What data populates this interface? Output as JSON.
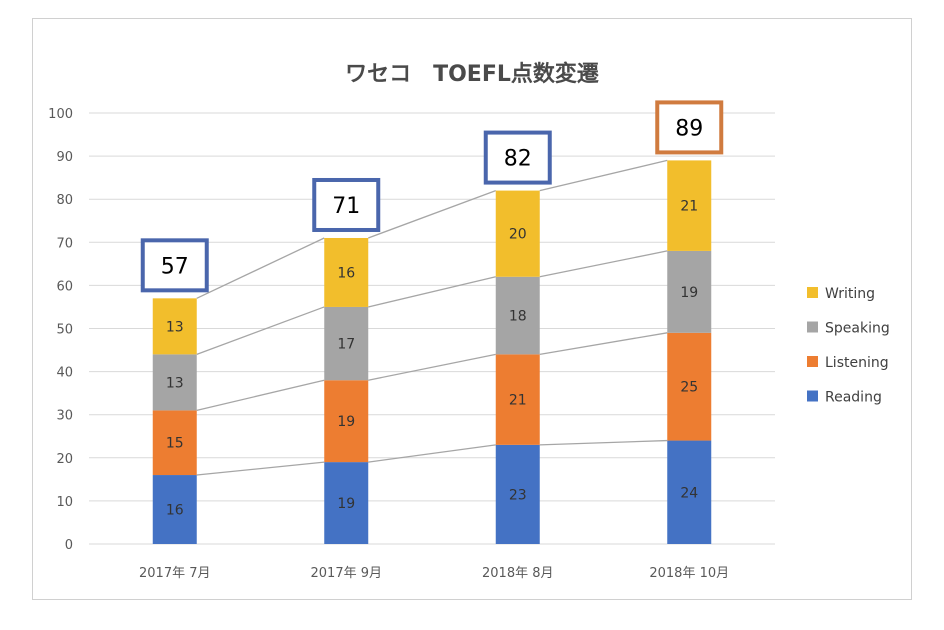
{
  "chart_data": {
    "type": "bar",
    "stacked": true,
    "title": "ワセコ　TOEFL点数変遷",
    "categories": [
      "2017年 7月",
      "2017年 9月",
      "2018年 8月",
      "2018年 10月"
    ],
    "series": [
      {
        "name": "Reading",
        "color": "#4472C4",
        "values": [
          16,
          19,
          23,
          24
        ]
      },
      {
        "name": "Listening",
        "color": "#ED7D31",
        "values": [
          15,
          19,
          21,
          25
        ]
      },
      {
        "name": "Speaking",
        "color": "#A5A5A5",
        "values": [
          13,
          17,
          18,
          19
        ]
      },
      {
        "name": "Writing",
        "color": "#F2BE2C",
        "values": [
          13,
          16,
          20,
          21
        ]
      }
    ],
    "totals": [
      57,
      71,
      82,
      89
    ],
    "total_box_colors": [
      "#4A66AC",
      "#4A66AC",
      "#4A66AC",
      "#D07B3F"
    ],
    "ylim": [
      0,
      100
    ],
    "yticks": [
      0,
      10,
      20,
      30,
      40,
      50,
      60,
      70,
      80,
      90,
      100
    ],
    "grid": true,
    "legend_position": "right",
    "series_lines": true
  }
}
